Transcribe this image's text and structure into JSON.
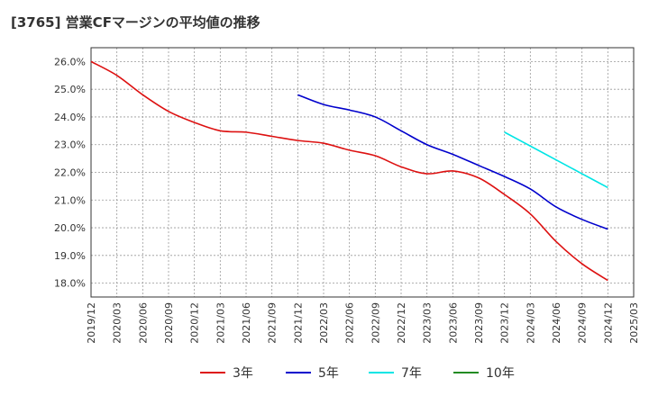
{
  "title": "[3765]  営業CFマージンの平均値の推移",
  "chart_data": {
    "type": "line",
    "title": "[3765]  営業CFマージンの平均値の推移",
    "xlabel": "",
    "ylabel": "",
    "ylim": [
      17.5,
      26.5
    ],
    "y_ticks": [
      "18.0%",
      "19.0%",
      "20.0%",
      "21.0%",
      "22.0%",
      "23.0%",
      "24.0%",
      "25.0%",
      "26.0%"
    ],
    "y_tick_values": [
      18,
      19,
      20,
      21,
      22,
      23,
      24,
      25,
      26
    ],
    "x_ticks": [
      "2019/12",
      "2020/03",
      "2020/06",
      "2020/09",
      "2020/12",
      "2021/03",
      "2021/06",
      "2021/09",
      "2021/12",
      "2022/03",
      "2022/06",
      "2022/09",
      "2022/12",
      "2023/03",
      "2023/06",
      "2023/09",
      "2023/12",
      "2024/03",
      "2024/06",
      "2024/09",
      "2024/12",
      "2025/03"
    ],
    "grid": true,
    "legend_position": "bottom",
    "series": [
      {
        "name": "3年",
        "color": "#dd1111",
        "start_index": 0,
        "values": [
          26.0,
          25.5,
          24.8,
          24.2,
          23.8,
          23.5,
          23.45,
          23.3,
          23.15,
          23.05,
          22.8,
          22.6,
          22.2,
          21.95,
          22.05,
          21.8,
          21.2,
          20.5,
          19.5,
          18.7,
          18.1
        ]
      },
      {
        "name": "5年",
        "color": "#0000cc",
        "start_index": 8,
        "values": [
          24.8,
          24.45,
          24.25,
          24.0,
          23.5,
          23.0,
          22.65,
          22.25,
          21.85,
          21.4,
          20.75,
          20.3,
          19.95
        ]
      },
      {
        "name": "7年",
        "color": "#00e5e5",
        "start_index": 16,
        "values": [
          23.45,
          22.95,
          22.45,
          21.95,
          21.45
        ]
      },
      {
        "name": "10年",
        "color": "#228b22",
        "start_index": 0,
        "values": []
      }
    ]
  }
}
